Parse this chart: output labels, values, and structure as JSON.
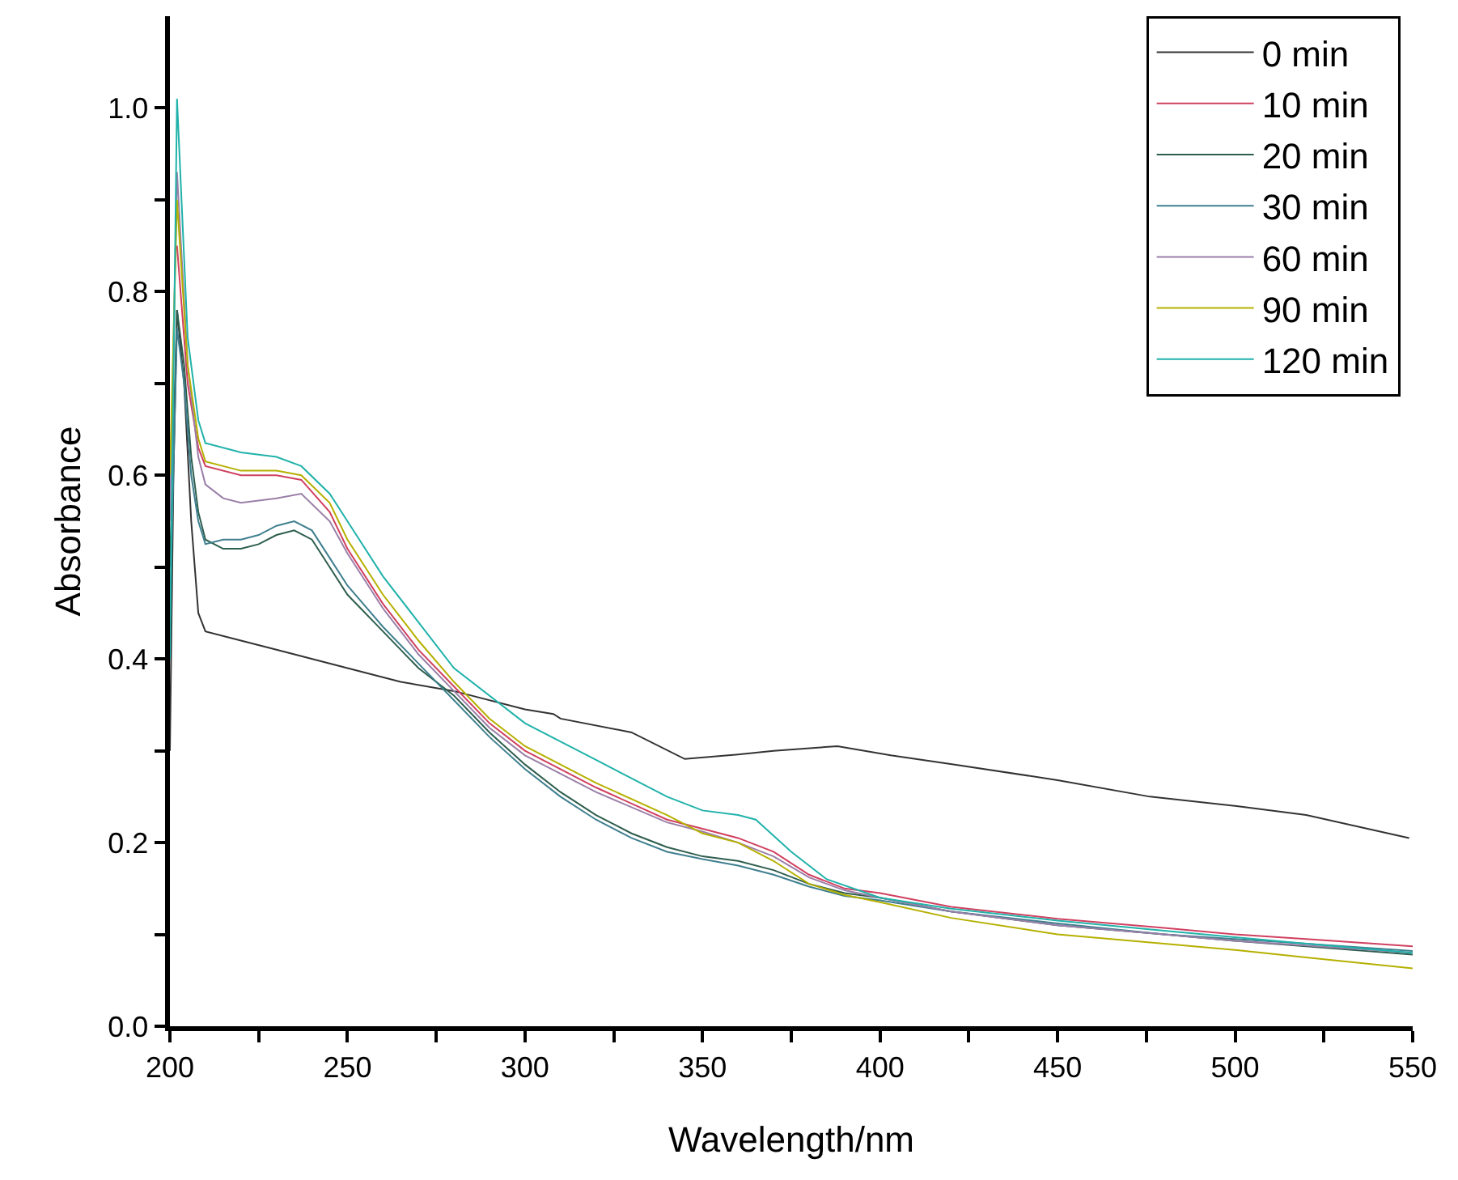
{
  "chart_data": {
    "type": "line",
    "xlabel": "Wavelength/nm",
    "ylabel": "Absorbance",
    "xlim": [
      200,
      550
    ],
    "ylim": [
      0,
      1.1
    ],
    "xticks": [
      200,
      {
        "value": 225,
        "label": null
      },
      250,
      {
        "value": 275,
        "label": null
      },
      300,
      {
        "value": 325,
        "label": null
      },
      350,
      {
        "value": 375,
        "label": null
      },
      400,
      {
        "value": 425,
        "label": null
      },
      450,
      {
        "value": 475,
        "label": null
      },
      500,
      {
        "value": 525,
        "label": null
      },
      550
    ],
    "yticks": [
      {
        "value": 0,
        "label": "0.0"
      },
      {
        "value": 0.1,
        "label": null
      },
      0.2,
      {
        "value": 0.3,
        "label": null
      },
      0.4,
      {
        "value": 0.5,
        "label": null
      },
      0.6,
      {
        "value": 0.7,
        "label": null
      },
      0.8,
      {
        "value": 0.9,
        "label": null
      },
      {
        "value": 1,
        "label": "1.0"
      }
    ],
    "grid": false,
    "legend": "top right",
    "marker": "none",
    "line_style": "solid",
    "series": [
      {
        "name": "0 min",
        "color": "#333333",
        "x": [
          200,
          201,
          202,
          204,
          206,
          208,
          210,
          220,
          230,
          250,
          265,
          280,
          300,
          308,
          310,
          330,
          345,
          360,
          370,
          388,
          403,
          421,
          450,
          476,
          500,
          520,
          549
        ],
        "values": [
          0.3,
          0.6,
          0.78,
          0.7,
          0.55,
          0.45,
          0.43,
          0.42,
          0.41,
          0.39,
          0.375,
          0.365,
          0.345,
          0.34,
          0.335,
          0.32,
          0.291,
          0.296,
          0.3,
          0.305,
          0.295,
          0.285,
          0.268,
          0.25,
          0.24,
          0.23,
          0.205
        ]
      },
      {
        "name": "10 min",
        "color": "#d04060",
        "x": [
          202,
          205,
          208,
          210,
          220,
          230,
          237,
          245,
          250,
          260,
          270,
          280,
          290,
          300,
          320,
          340,
          350,
          360,
          370,
          380,
          390,
          400,
          420,
          450,
          480,
          500,
          520,
          550
        ],
        "values": [
          0.85,
          0.7,
          0.63,
          0.61,
          0.6,
          0.6,
          0.595,
          0.56,
          0.52,
          0.46,
          0.41,
          0.37,
          0.33,
          0.3,
          0.26,
          0.225,
          0.215,
          0.205,
          0.19,
          0.165,
          0.15,
          0.145,
          0.13,
          0.117,
          0.107,
          0.1,
          0.095,
          0.087
        ]
      },
      {
        "name": "20 min",
        "color": "#2e5e4e",
        "x": [
          200,
          202,
          204,
          206,
          208,
          210,
          215,
          220,
          225,
          230,
          235,
          240,
          245,
          250,
          260,
          270,
          280,
          290,
          300,
          310,
          320,
          330,
          340,
          350,
          360,
          370,
          380,
          390,
          400,
          420,
          450,
          480,
          500,
          520,
          550
        ],
        "values": [
          0.5,
          0.78,
          0.72,
          0.62,
          0.56,
          0.53,
          0.52,
          0.52,
          0.525,
          0.535,
          0.54,
          0.53,
          0.5,
          0.47,
          0.43,
          0.39,
          0.36,
          0.32,
          0.285,
          0.255,
          0.23,
          0.21,
          0.195,
          0.185,
          0.18,
          0.17,
          0.155,
          0.145,
          0.14,
          0.125,
          0.11,
          0.1,
          0.093,
          0.087,
          0.078
        ]
      },
      {
        "name": "30 min",
        "color": "#3f7f8f",
        "x": [
          200,
          202,
          204,
          206,
          208,
          210,
          215,
          220,
          225,
          230,
          235,
          240,
          245,
          250,
          260,
          270,
          280,
          290,
          300,
          310,
          320,
          330,
          340,
          350,
          360,
          370,
          380,
          390,
          400,
          420,
          450,
          480,
          500,
          520,
          550
        ],
        "values": [
          0.45,
          0.76,
          0.7,
          0.6,
          0.55,
          0.525,
          0.53,
          0.53,
          0.535,
          0.545,
          0.55,
          0.54,
          0.51,
          0.48,
          0.435,
          0.395,
          0.355,
          0.315,
          0.28,
          0.25,
          0.225,
          0.205,
          0.19,
          0.182,
          0.175,
          0.165,
          0.152,
          0.142,
          0.137,
          0.125,
          0.112,
          0.1,
          0.095,
          0.09,
          0.082
        ]
      },
      {
        "name": "60 min",
        "color": "#9a7fa8",
        "x": [
          200,
          202,
          205,
          208,
          210,
          215,
          220,
          230,
          237,
          245,
          250,
          260,
          270,
          280,
          290,
          300,
          320,
          340,
          350,
          360,
          370,
          380,
          390,
          400,
          420,
          450,
          480,
          500,
          520,
          550
        ],
        "values": [
          0.55,
          0.93,
          0.72,
          0.62,
          0.59,
          0.575,
          0.57,
          0.575,
          0.58,
          0.55,
          0.515,
          0.455,
          0.405,
          0.365,
          0.325,
          0.295,
          0.255,
          0.222,
          0.212,
          0.2,
          0.185,
          0.162,
          0.148,
          0.14,
          0.125,
          0.11,
          0.1,
          0.093,
          0.088,
          0.08
        ]
      },
      {
        "name": "90 min",
        "color": "#b5b000",
        "x": [
          200,
          202,
          205,
          208,
          210,
          220,
          230,
          237,
          245,
          250,
          260,
          270,
          280,
          290,
          300,
          320,
          340,
          350,
          360,
          370,
          380,
          390,
          400,
          420,
          450,
          480,
          500,
          520,
          550
        ],
        "values": [
          0.6,
          0.9,
          0.72,
          0.64,
          0.615,
          0.605,
          0.605,
          0.6,
          0.57,
          0.53,
          0.47,
          0.42,
          0.375,
          0.335,
          0.305,
          0.265,
          0.23,
          0.21,
          0.2,
          0.18,
          0.155,
          0.143,
          0.135,
          0.118,
          0.1,
          0.09,
          0.083,
          0.075,
          0.063
        ]
      },
      {
        "name": "120 min",
        "color": "#20b2aa",
        "x": [
          200,
          202,
          205,
          208,
          210,
          220,
          230,
          237,
          245,
          250,
          260,
          270,
          280,
          300,
          320,
          340,
          350,
          360,
          365,
          375,
          385,
          400,
          420,
          450,
          480,
          500,
          520,
          550
        ],
        "values": [
          0.4,
          1.01,
          0.75,
          0.66,
          0.635,
          0.625,
          0.62,
          0.61,
          0.58,
          0.55,
          0.49,
          0.44,
          0.39,
          0.33,
          0.29,
          0.25,
          0.235,
          0.23,
          0.225,
          0.19,
          0.16,
          0.14,
          0.128,
          0.115,
          0.104,
          0.097,
          0.09,
          0.08
        ]
      }
    ]
  }
}
